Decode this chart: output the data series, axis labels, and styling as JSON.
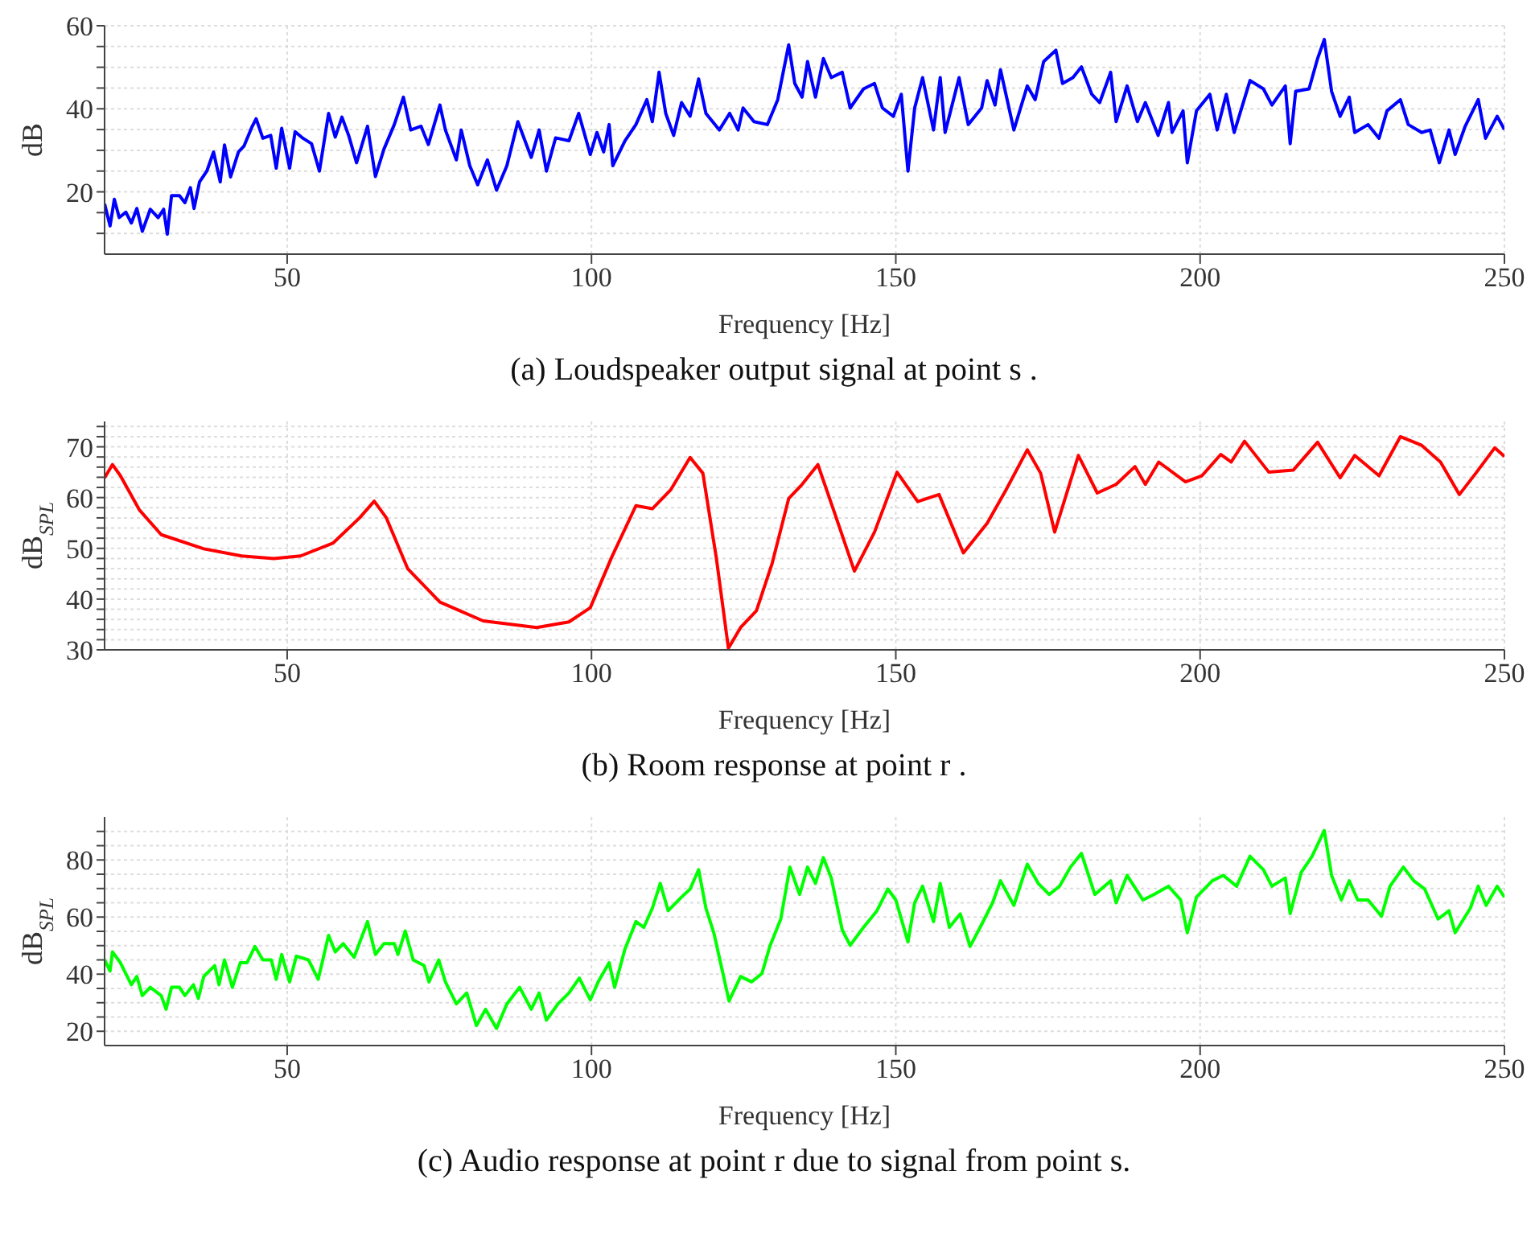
{
  "chart_data": [
    {
      "type": "line",
      "title": "(a) Loudspeaker output signal at point s .",
      "xlabel": "Frequency [Hz]",
      "ylabel": "dB",
      "xlim": [
        20,
        250
      ],
      "xticks": [
        50,
        100,
        150,
        200,
        250
      ],
      "ylim": [
        5,
        60
      ],
      "yticks": [
        {
          "value": 10,
          "label": null
        },
        {
          "value": 15,
          "label": null
        },
        20,
        {
          "value": 25,
          "label": null
        },
        {
          "value": 30,
          "label": null
        },
        {
          "value": 35,
          "label": null
        },
        40,
        {
          "value": 45,
          "label": null
        },
        {
          "value": 50,
          "label": null
        },
        {
          "value": 55,
          "label": null
        },
        60
      ],
      "grid": true,
      "series": [
        {
          "color": "#0000ff",
          "x": [
            20,
            20.9,
            21.6,
            22.4,
            23.5,
            24.4,
            25.3,
            26.2,
            27.5,
            28.8,
            29.7,
            30.3,
            31,
            32.3,
            33.2,
            34.1,
            34.7,
            35.6,
            36.8,
            37.9,
            39,
            39.7,
            40.7,
            42,
            42.9,
            44.2,
            44.9,
            46,
            47.3,
            48.2,
            49.1,
            50.4,
            51.3,
            52.6,
            54,
            55.3,
            56.8,
            57.9,
            59,
            60.1,
            61.4,
            63.2,
            64.5,
            65.9,
            67.6,
            69.1,
            70.3,
            72,
            73.2,
            75.1,
            76,
            77.8,
            78.6,
            80,
            81.3,
            82.9,
            84.4,
            86.1,
            87.9,
            90.1,
            91.4,
            92.6,
            94.1,
            96.3,
            97.9,
            99.8,
            100.9,
            102,
            102.9,
            103.5,
            105.5,
            107.3,
            109.1,
            110,
            111.1,
            112.2,
            113.5,
            114.8,
            116.2,
            117.6,
            118.8,
            121,
            122.7,
            124.1,
            124.9,
            126.7,
            128.9,
            130.6,
            132.4,
            133.4,
            134.6,
            135.5,
            136.8,
            138.1,
            139.4,
            141.2,
            142.5,
            144.7,
            146.5,
            147.8,
            149.6,
            150.9,
            152,
            153.1,
            154.4,
            156.2,
            157.3,
            158.1,
            160.4,
            161.9,
            164.1,
            165,
            166.3,
            167.2,
            169.4,
            171.6,
            172.9,
            174.3,
            176.3,
            177.4,
            179.1,
            180.5,
            182.2,
            183.5,
            185.3,
            186.2,
            188,
            189.7,
            191,
            193.1,
            194.8,
            195.4,
            197.2,
            197.9,
            199.4,
            201.6,
            202.8,
            204.3,
            205.6,
            208.2,
            210.4,
            211.8,
            214,
            214.8,
            215.7,
            217.9,
            219.3,
            220.4,
            221.6,
            223,
            224.5,
            225.4,
            227.6,
            229.4,
            230.7,
            232.9,
            234.2,
            236.4,
            237.8,
            239.3,
            240.9,
            241.9,
            243.5,
            245.7,
            246.9,
            248.8,
            250
          ],
          "values": [
            17.1,
            11.8,
            18.2,
            13.8,
            15.1,
            12.5,
            16,
            10.5,
            15.8,
            13.8,
            15.8,
            9.8,
            19.1,
            19.1,
            17.4,
            21,
            16,
            22.4,
            25,
            29.6,
            22.4,
            31.3,
            23.6,
            29.6,
            31,
            35.6,
            37.6,
            32.9,
            33.6,
            25.7,
            35.3,
            25.7,
            34.5,
            32.9,
            31.6,
            25,
            38.9,
            33.2,
            38,
            33.6,
            27,
            35.8,
            23.7,
            30.3,
            36.2,
            42.8,
            34.9,
            35.8,
            31.4,
            40.9,
            34.9,
            27.7,
            34.9,
            26.3,
            21.7,
            27.7,
            20.4,
            26.3,
            36.9,
            28.3,
            34.9,
            25,
            33,
            32.3,
            38.9,
            29,
            34.3,
            29.6,
            36.2,
            26.3,
            32.3,
            36.2,
            42.2,
            36.9,
            48.8,
            38.9,
            33.6,
            41.5,
            38.2,
            47.2,
            38.9,
            34.9,
            38.9,
            34.9,
            40.2,
            36.9,
            36.2,
            42.2,
            55.4,
            46.1,
            42.8,
            51.4,
            42.8,
            52.1,
            47.5,
            48.8,
            40.2,
            44.8,
            46.1,
            40.2,
            38.2,
            43.5,
            25,
            40.2,
            47.5,
            34.9,
            47.5,
            34.3,
            47.5,
            36.2,
            40.2,
            46.8,
            40.9,
            49.4,
            34.9,
            45.5,
            42.2,
            51.4,
            54.1,
            46.1,
            47.5,
            50.1,
            43.5,
            41.5,
            48.8,
            36.9,
            45.5,
            36.9,
            41.5,
            33.6,
            41.5,
            34.3,
            39.5,
            27,
            39.5,
            43.5,
            34.9,
            43.5,
            34.3,
            46.8,
            44.8,
            40.9,
            45.5,
            31.6,
            44.2,
            44.8,
            52.1,
            56.7,
            44.2,
            38.2,
            42.8,
            34.3,
            36.2,
            32.9,
            39.5,
            42.2,
            36.2,
            34.3,
            34.9,
            27,
            34.9,
            29,
            35.6,
            42.2,
            32.9,
            38.2,
            35
          ]
        }
      ]
    },
    {
      "type": "line",
      "title": "(b) Room response at point r .",
      "xlabel": "Frequency [Hz]",
      "ylabel": "dB$_{SPL}$",
      "xlim": [
        20,
        250
      ],
      "xticks": [
        50,
        100,
        150,
        200,
        250
      ],
      "ylim": [
        30,
        75
      ],
      "yticks": [
        30,
        {
          "value": 32,
          "label": null
        },
        {
          "value": 34,
          "label": null
        },
        {
          "value": 36,
          "label": null
        },
        {
          "value": 38,
          "label": null
        },
        40,
        {
          "value": 42,
          "label": null
        },
        {
          "value": 44,
          "label": null
        },
        {
          "value": 46,
          "label": null
        },
        {
          "value": 48,
          "label": null
        },
        50,
        {
          "value": 52,
          "label": null
        },
        {
          "value": 54,
          "label": null
        },
        {
          "value": 56,
          "label": null
        },
        {
          "value": 58,
          "label": null
        },
        60,
        {
          "value": 62,
          "label": null
        },
        {
          "value": 64,
          "label": null
        },
        {
          "value": 66,
          "label": null
        },
        {
          "value": 68,
          "label": null
        },
        70,
        {
          "value": 72,
          "label": null
        },
        {
          "value": 74,
          "label": null
        }
      ],
      "grid": true,
      "series": [
        {
          "color": "#ff0000",
          "x": [
            20,
            21.3,
            22.6,
            25.7,
            29.3,
            36.3,
            42.5,
            47.8,
            52.2,
            57.5,
            61.9,
            64.3,
            66.3,
            69.8,
            75.1,
            82.2,
            91,
            96.3,
            99.8,
            103.3,
            107.3,
            110,
            113,
            116.2,
            118.3,
            120.5,
            122.5,
            124.5,
            127.1,
            129.7,
            132.4,
            134.6,
            137.2,
            139.9,
            143.2,
            146.5,
            150.2,
            153.6,
            157.1,
            161.1,
            165,
            168.1,
            171.6,
            173.8,
            176.1,
            180,
            183.1,
            186.2,
            189.3,
            191,
            193.2,
            197.6,
            200.3,
            203.4,
            205.1,
            207.3,
            211.3,
            215.3,
            219.3,
            223,
            225.4,
            229.4,
            232.9,
            236.4,
            239.5,
            242.6,
            245.3,
            248.4,
            250
          ],
          "values": [
            63.9,
            66.5,
            64.3,
            57.6,
            52.7,
            49.9,
            48.5,
            48,
            48.5,
            51,
            56,
            59.3,
            56,
            46,
            39.4,
            35.7,
            34.4,
            35.5,
            38.3,
            48.2,
            58.4,
            57.8,
            61.5,
            67.9,
            64.8,
            48.2,
            30.3,
            34.4,
            37.7,
            47.1,
            59.8,
            62.6,
            66.5,
            57.1,
            45.5,
            53.2,
            65,
            59.2,
            60.6,
            49.1,
            54.9,
            61.5,
            69.4,
            64.8,
            53.2,
            68.3,
            60.9,
            62.6,
            66.1,
            62.6,
            67,
            63.1,
            64.3,
            68.5,
            67,
            71.1,
            65,
            65.4,
            70.9,
            63.9,
            68.3,
            64.3,
            72,
            70.3,
            67,
            60.6,
            64.8,
            69.8,
            68.1
          ]
        }
      ]
    },
    {
      "type": "line",
      "title": "(c) Audio response at point r due to signal from point s.",
      "xlabel": "Frequency [Hz]",
      "ylabel": "dB$_{SPL}$",
      "xlim": [
        20,
        250
      ],
      "xticks": [
        50,
        100,
        150,
        200,
        250
      ],
      "ylim": [
        15,
        95
      ],
      "yticks": [
        20,
        {
          "value": 25,
          "label": null
        },
        {
          "value": 30,
          "label": null
        },
        {
          "value": 35,
          "label": null
        },
        40,
        {
          "value": 45,
          "label": null
        },
        {
          "value": 50,
          "label": null
        },
        {
          "value": 55,
          "label": null
        },
        60,
        {
          "value": 65,
          "label": null
        },
        {
          "value": 70,
          "label": null
        },
        {
          "value": 75,
          "label": null
        },
        80,
        {
          "value": 85,
          "label": null
        },
        {
          "value": 90,
          "label": null
        }
      ],
      "grid": true,
      "series": [
        {
          "color": "#00ff00",
          "x": [
            20,
            20.9,
            21.3,
            22.6,
            24.4,
            25.3,
            26.2,
            27.5,
            29.3,
            30.1,
            31,
            32.3,
            33.2,
            34.6,
            35.4,
            36.3,
            38.1,
            38.8,
            39.7,
            41,
            42.3,
            43.4,
            44.7,
            46,
            47.4,
            48.2,
            49.1,
            50.4,
            51.5,
            53.5,
            55.1,
            56.8,
            57.9,
            59.2,
            61,
            63.2,
            64.5,
            65.9,
            67.6,
            68.2,
            69.4,
            70.7,
            72.5,
            73.3,
            74.9,
            76,
            77.8,
            79.5,
            81.1,
            82.6,
            84.4,
            86.1,
            88.2,
            90.1,
            91.4,
            92.6,
            94.5,
            96.3,
            98,
            99.8,
            101.1,
            102.9,
            103.8,
            105.5,
            107.3,
            108.6,
            110,
            111.3,
            112.6,
            114.8,
            116.2,
            117.6,
            118.8,
            120.1,
            121.4,
            122.6,
            124.5,
            126.3,
            128,
            129.3,
            131.1,
            132.6,
            134.2,
            135.5,
            136.8,
            138.1,
            139.4,
            141.2,
            142.5,
            144.7,
            146.9,
            148.7,
            150,
            152,
            153.1,
            154.4,
            156.2,
            157.3,
            158.8,
            160.6,
            162.2,
            164.1,
            165.9,
            167.2,
            169.4,
            171.6,
            173.4,
            175.2,
            176.9,
            178.7,
            180.5,
            182.7,
            185.3,
            186.2,
            188,
            190.6,
            192.4,
            194.8,
            196.8,
            197.9,
            199.4,
            202,
            203.8,
            206,
            208.2,
            210.4,
            211.8,
            214,
            214.8,
            216.6,
            218.4,
            220.4,
            221.6,
            223.2,
            224.5,
            225.9,
            227.6,
            229.8,
            231.2,
            233.4,
            235.1,
            236.9,
            239.1,
            240.9,
            241.9,
            244.4,
            245.7,
            247,
            248.8,
            250
          ],
          "values": [
            45,
            41.1,
            47.8,
            44,
            36.3,
            39.2,
            32.5,
            35.4,
            32.5,
            27.7,
            35.4,
            35.4,
            32.5,
            36.3,
            31.5,
            39.2,
            43,
            36.3,
            45,
            35.4,
            44,
            44,
            49.7,
            45,
            45,
            38.2,
            46.9,
            37.3,
            46.3,
            45,
            38.2,
            53.6,
            47.8,
            50.7,
            45.9,
            58.4,
            46.9,
            50.7,
            50.7,
            46.9,
            55.1,
            45,
            43,
            37.3,
            45,
            37.3,
            29.6,
            33.4,
            22,
            27.7,
            21,
            29.6,
            35.4,
            27.7,
            33.4,
            23.9,
            29.6,
            33.4,
            38.6,
            31,
            37.3,
            44,
            35.4,
            48.8,
            58.4,
            56.4,
            63.1,
            71.8,
            62.2,
            67,
            69.8,
            76.6,
            63.1,
            54.5,
            42.1,
            30.6,
            39.2,
            37.3,
            40.2,
            49.7,
            59.3,
            77.5,
            67.9,
            77.5,
            71.8,
            80.8,
            73.7,
            55.5,
            50.1,
            56.4,
            62.2,
            69.8,
            66,
            51.3,
            65,
            70.8,
            58.4,
            71.8,
            56.4,
            61.1,
            49.7,
            57.4,
            65,
            72.7,
            64.1,
            78.5,
            71.8,
            67.9,
            70.8,
            77.5,
            82.3,
            67.9,
            72.7,
            65,
            74.6,
            66,
            67.9,
            70.8,
            66,
            54.5,
            67,
            72.7,
            74.6,
            70.8,
            81.3,
            76.6,
            70.8,
            73.7,
            61.2,
            75.6,
            81.3,
            90.3,
            74.6,
            66,
            72.7,
            66,
            66,
            60.3,
            70.8,
            77.5,
            72.7,
            69.8,
            59.3,
            62.2,
            54.5,
            63.1,
            70.8,
            64.1,
            70.8,
            67
          ]
        }
      ]
    }
  ]
}
